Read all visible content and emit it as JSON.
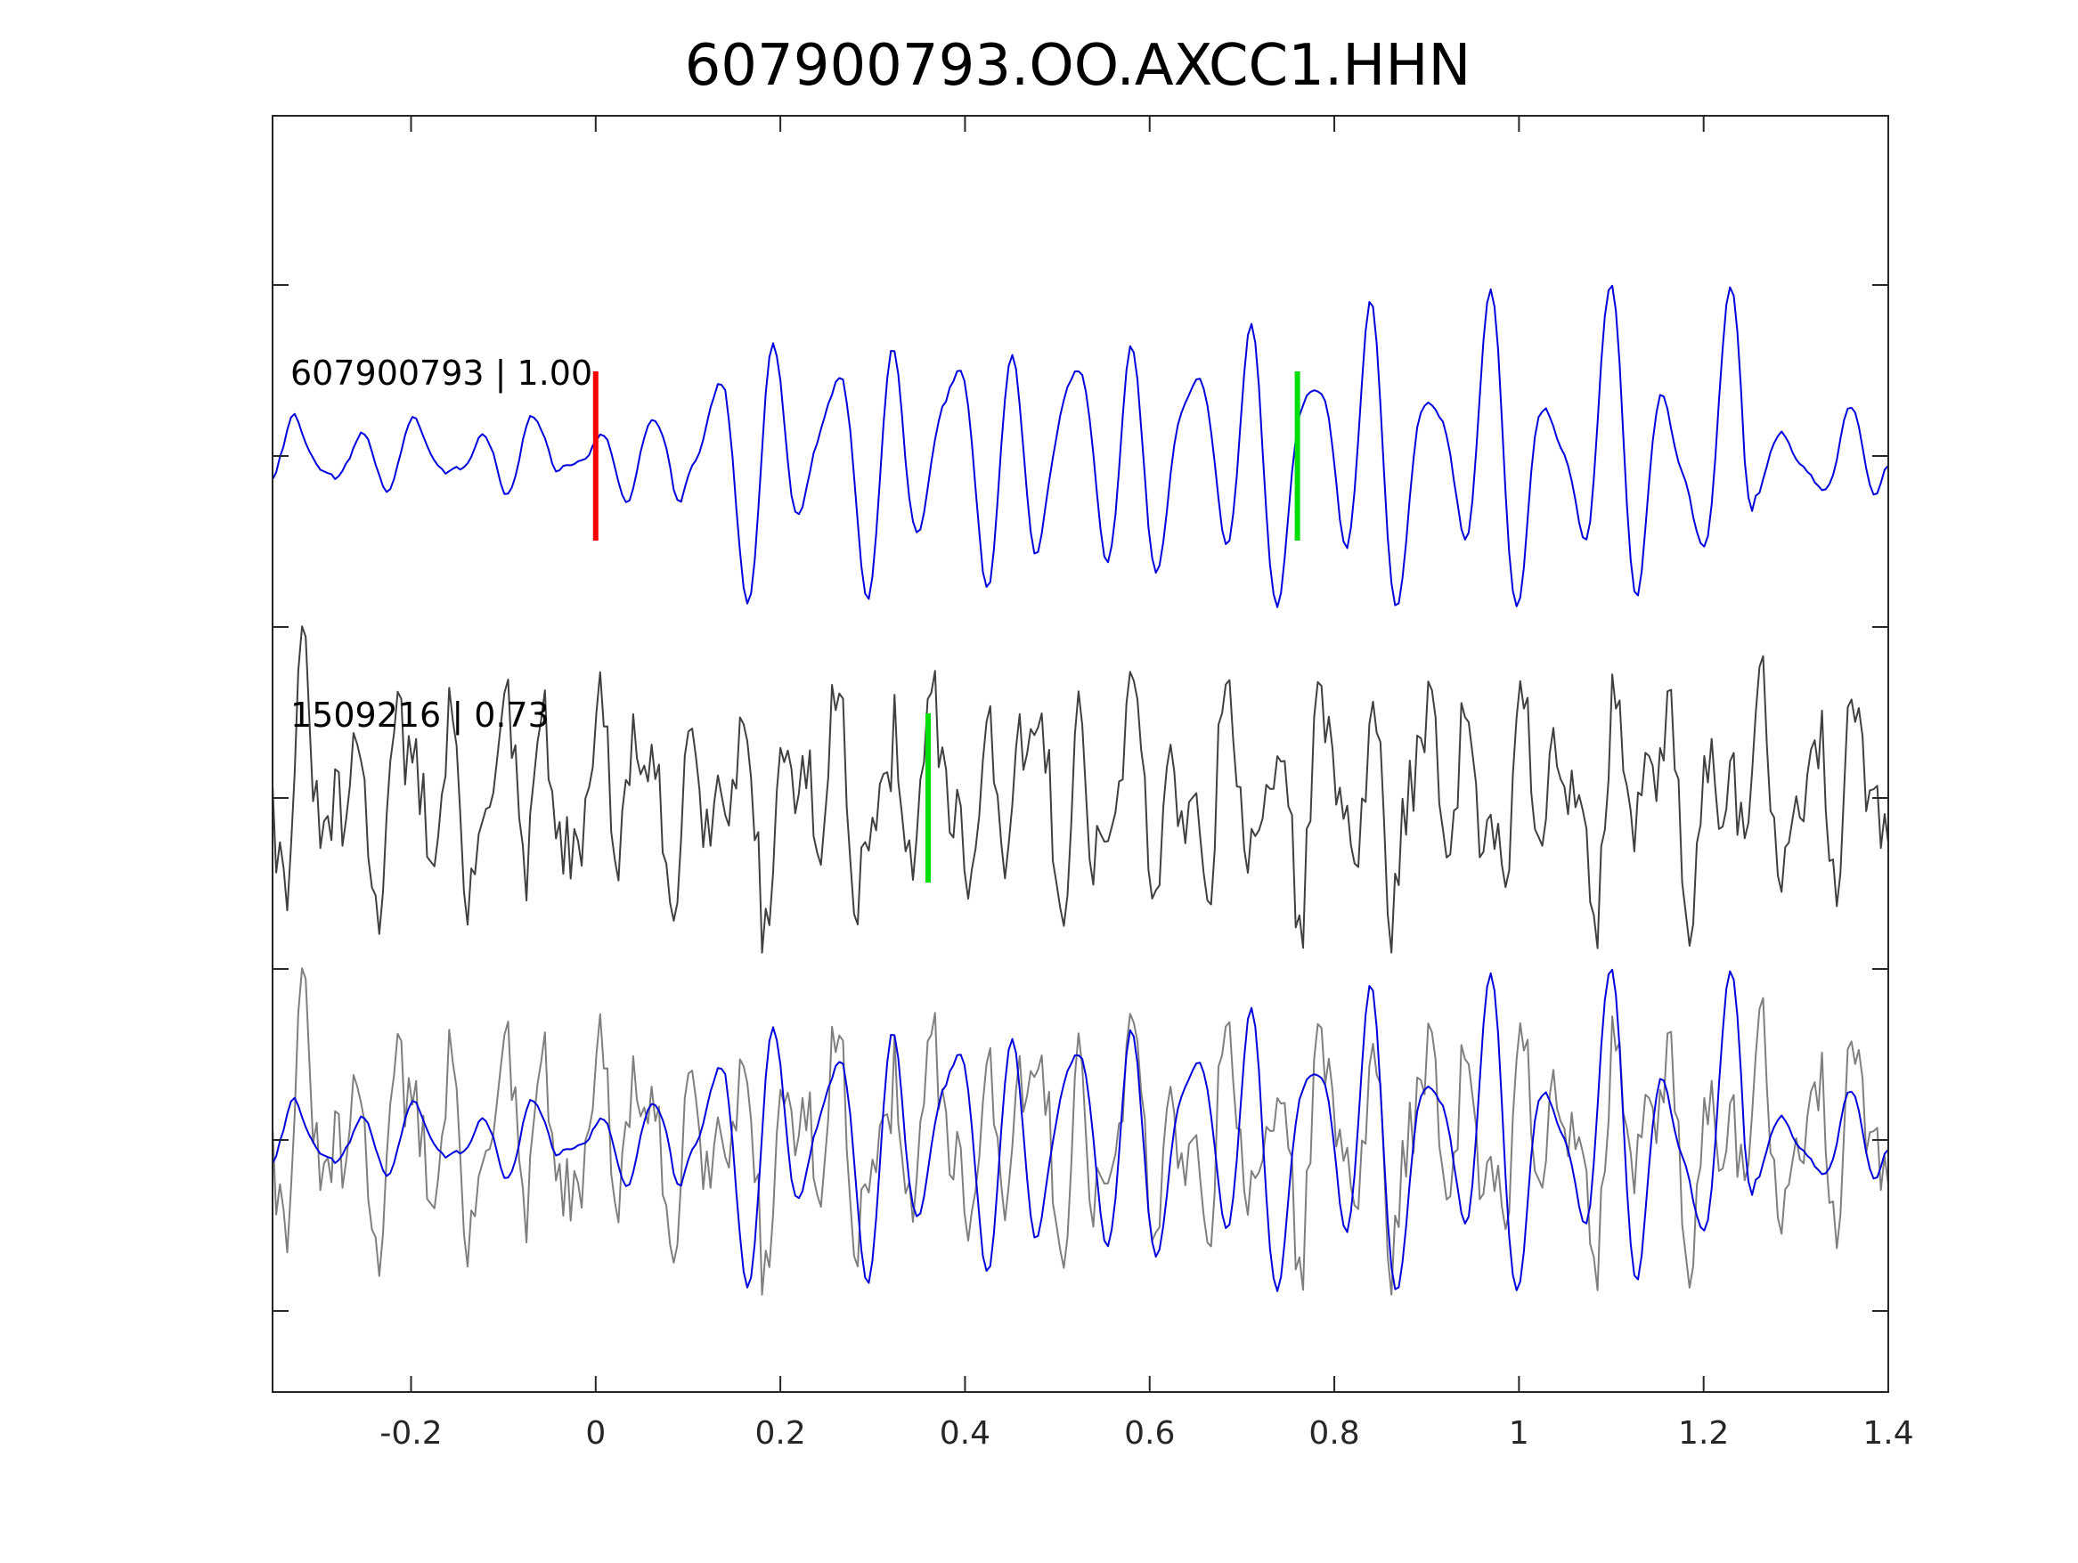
{
  "chart_data": {
    "type": "line",
    "title": "607900793.OO.AXCC1.HHN",
    "xlabel": "",
    "ylabel": "",
    "xlim": [
      -0.35,
      1.4
    ],
    "x_ticks": [
      "-0.2",
      "0",
      "0.2",
      "0.4",
      "0.6",
      "0.8",
      "1",
      "1.2",
      "1.4"
    ],
    "x_tick_values": [
      -0.2,
      0,
      0.2,
      0.4,
      0.6,
      0.8,
      1,
      1.2,
      1.4
    ],
    "y_ticks": [
      "",
      "",
      "",
      "",
      "",
      "",
      ""
    ],
    "grid": false,
    "legend": "none",
    "colors": {
      "template": "#0000dd",
      "neighbor": "#404040",
      "neighbor_overlay": "#7f7f7f",
      "pick_red": "#ff0000",
      "pick_green": "#00dd00"
    },
    "traces": [
      {
        "label": "607900793 | 1.00",
        "color": "#0000dd",
        "waveform": "template",
        "picks": [
          {
            "time": 0.0,
            "color": "#ff0000"
          },
          {
            "time": 0.76,
            "color": "#00dd00"
          }
        ]
      },
      {
        "label": "1509216 | 0.73",
        "color": "#404040",
        "waveform": "neighbor",
        "picks": [
          {
            "time": 0.36,
            "color": "#00dd00"
          }
        ]
      },
      {
        "label": "",
        "color": "#0000dd",
        "waveform": "overlay",
        "picks": []
      }
    ]
  }
}
